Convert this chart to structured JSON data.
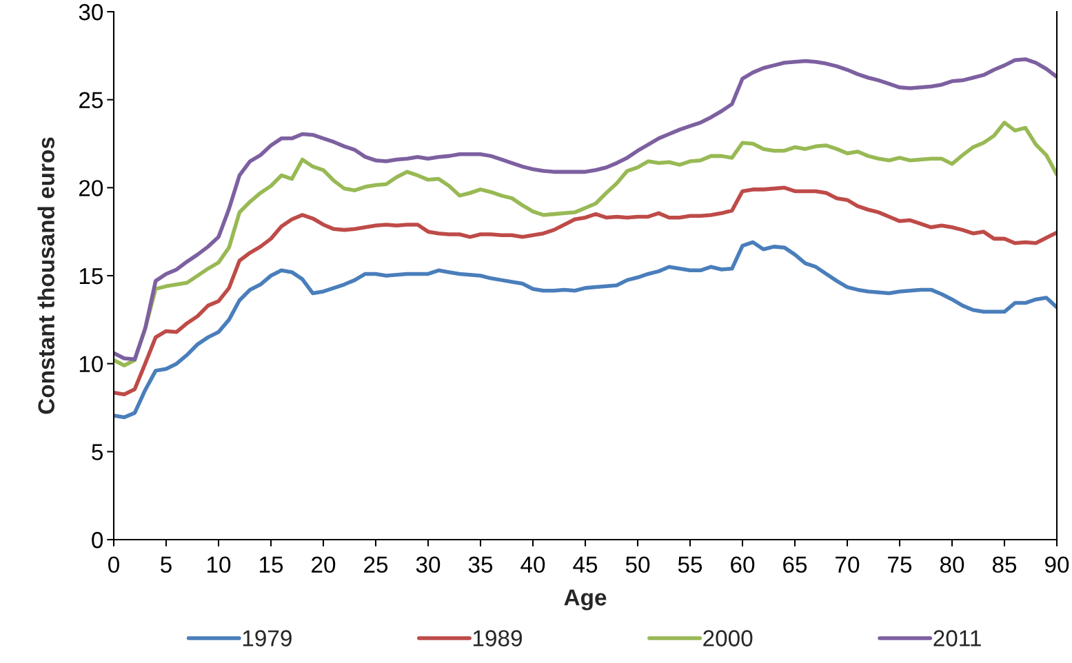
{
  "chart_data": {
    "type": "line",
    "xlabel": "Age",
    "ylabel": "Constant thousand euros",
    "x": [
      0,
      1,
      2,
      3,
      4,
      5,
      6,
      7,
      8,
      9,
      10,
      11,
      12,
      13,
      14,
      15,
      16,
      17,
      18,
      19,
      20,
      21,
      22,
      23,
      24,
      25,
      26,
      27,
      28,
      29,
      30,
      31,
      32,
      33,
      34,
      35,
      36,
      37,
      38,
      39,
      40,
      41,
      42,
      43,
      44,
      45,
      46,
      47,
      48,
      49,
      50,
      51,
      52,
      53,
      54,
      55,
      56,
      57,
      58,
      59,
      60,
      61,
      62,
      63,
      64,
      65,
      66,
      67,
      68,
      69,
      70,
      71,
      72,
      73,
      74,
      75,
      76,
      77,
      78,
      79,
      80,
      81,
      82,
      83,
      84,
      85,
      86,
      87,
      88,
      89,
      90
    ],
    "series": [
      {
        "name": "1979",
        "color": "#4a7ebb",
        "values": [
          7.05,
          6.95,
          7.2,
          8.5,
          9.6,
          9.7,
          10.0,
          10.5,
          11.1,
          11.5,
          11.8,
          12.5,
          13.6,
          14.2,
          14.5,
          15.0,
          15.3,
          15.2,
          14.8,
          14.0,
          14.1,
          14.3,
          14.5,
          14.75,
          15.1,
          15.1,
          15.0,
          15.05,
          15.1,
          15.1,
          15.1,
          15.3,
          15.2,
          15.1,
          15.05,
          15.0,
          14.85,
          14.75,
          14.65,
          14.55,
          14.25,
          14.15,
          14.15,
          14.2,
          14.15,
          14.3,
          14.35,
          14.4,
          14.45,
          14.75,
          14.9,
          15.1,
          15.25,
          15.5,
          15.4,
          15.3,
          15.3,
          15.5,
          15.35,
          15.4,
          16.7,
          16.9,
          16.5,
          16.65,
          16.6,
          16.2,
          15.7,
          15.5,
          15.1,
          14.7,
          14.35,
          14.2,
          14.1,
          14.05,
          14.0,
          14.1,
          14.15,
          14.2,
          14.2,
          13.95,
          13.65,
          13.3,
          13.05,
          12.95,
          12.95,
          12.95,
          13.45,
          13.45,
          13.65,
          13.75,
          13.2
        ]
      },
      {
        "name": "1989",
        "color": "#be4b48",
        "values": [
          8.35,
          8.25,
          8.55,
          10.0,
          11.5,
          11.85,
          11.8,
          12.3,
          12.7,
          13.3,
          13.55,
          14.3,
          15.85,
          16.3,
          16.65,
          17.1,
          17.8,
          18.2,
          18.45,
          18.25,
          17.9,
          17.65,
          17.6,
          17.65,
          17.75,
          17.85,
          17.9,
          17.85,
          17.9,
          17.9,
          17.5,
          17.4,
          17.35,
          17.35,
          17.2,
          17.35,
          17.35,
          17.3,
          17.3,
          17.2,
          17.3,
          17.4,
          17.6,
          17.9,
          18.2,
          18.3,
          18.5,
          18.3,
          18.35,
          18.3,
          18.35,
          18.35,
          18.55,
          18.3,
          18.3,
          18.4,
          18.4,
          18.45,
          18.55,
          18.7,
          19.8,
          19.9,
          19.9,
          19.95,
          20.0,
          19.8,
          19.8,
          19.8,
          19.7,
          19.4,
          19.3,
          18.95,
          18.75,
          18.6,
          18.35,
          18.1,
          18.15,
          17.95,
          17.75,
          17.85,
          17.75,
          17.6,
          17.4,
          17.5,
          17.1,
          17.1,
          16.85,
          16.9,
          16.85,
          17.15,
          17.45
        ]
      },
      {
        "name": "2000",
        "color": "#98b954",
        "values": [
          10.2,
          9.9,
          10.2,
          12.0,
          14.25,
          14.4,
          14.5,
          14.6,
          15.0,
          15.4,
          15.75,
          16.6,
          18.6,
          19.2,
          19.7,
          20.1,
          20.7,
          20.5,
          21.6,
          21.2,
          21.0,
          20.4,
          19.95,
          19.85,
          20.05,
          20.15,
          20.2,
          20.6,
          20.9,
          20.7,
          20.45,
          20.5,
          20.1,
          19.55,
          19.7,
          19.9,
          19.75,
          19.55,
          19.4,
          19.0,
          18.65,
          18.45,
          18.5,
          18.55,
          18.6,
          18.85,
          19.1,
          19.7,
          20.25,
          20.95,
          21.15,
          21.5,
          21.4,
          21.45,
          21.3,
          21.5,
          21.55,
          21.8,
          21.8,
          21.7,
          22.55,
          22.5,
          22.2,
          22.1,
          22.1,
          22.3,
          22.2,
          22.35,
          22.4,
          22.2,
          21.95,
          22.05,
          21.8,
          21.65,
          21.55,
          21.7,
          21.55,
          21.6,
          21.65,
          21.65,
          21.35,
          21.85,
          22.3,
          22.55,
          22.95,
          23.7,
          23.25,
          23.4,
          22.45,
          21.85,
          20.75
        ]
      },
      {
        "name": "2011",
        "color": "#7d60a0",
        "values": [
          10.6,
          10.3,
          10.25,
          12.0,
          14.7,
          15.1,
          15.35,
          15.8,
          16.2,
          16.65,
          17.2,
          18.8,
          20.7,
          21.5,
          21.85,
          22.4,
          22.8,
          22.8,
          23.05,
          23.0,
          22.8,
          22.6,
          22.35,
          22.15,
          21.75,
          21.55,
          21.5,
          21.6,
          21.65,
          21.75,
          21.65,
          21.75,
          21.8,
          21.9,
          21.9,
          21.9,
          21.8,
          21.6,
          21.4,
          21.2,
          21.05,
          20.95,
          20.9,
          20.9,
          20.9,
          20.9,
          21.0,
          21.15,
          21.4,
          21.7,
          22.1,
          22.45,
          22.8,
          23.05,
          23.3,
          23.5,
          23.7,
          24.0,
          24.35,
          24.75,
          26.2,
          26.55,
          26.8,
          26.95,
          27.1,
          27.15,
          27.2,
          27.15,
          27.05,
          26.9,
          26.7,
          26.45,
          26.25,
          26.1,
          25.9,
          25.7,
          25.65,
          25.7,
          25.75,
          25.85,
          26.05,
          26.1,
          26.25,
          26.4,
          26.7,
          26.95,
          27.25,
          27.3,
          27.1,
          26.75,
          26.3
        ]
      }
    ],
    "xlim": [
      0,
      90
    ],
    "xticks": [
      0,
      5,
      10,
      15,
      20,
      25,
      30,
      35,
      40,
      45,
      50,
      55,
      60,
      65,
      70,
      75,
      80,
      85,
      90
    ],
    "ylim": [
      0,
      30
    ],
    "yticks": [
      0,
      5,
      10,
      15,
      20,
      25,
      30
    ],
    "grid": false,
    "legend": "bottom",
    "marker": "none",
    "line_style": "solid"
  }
}
